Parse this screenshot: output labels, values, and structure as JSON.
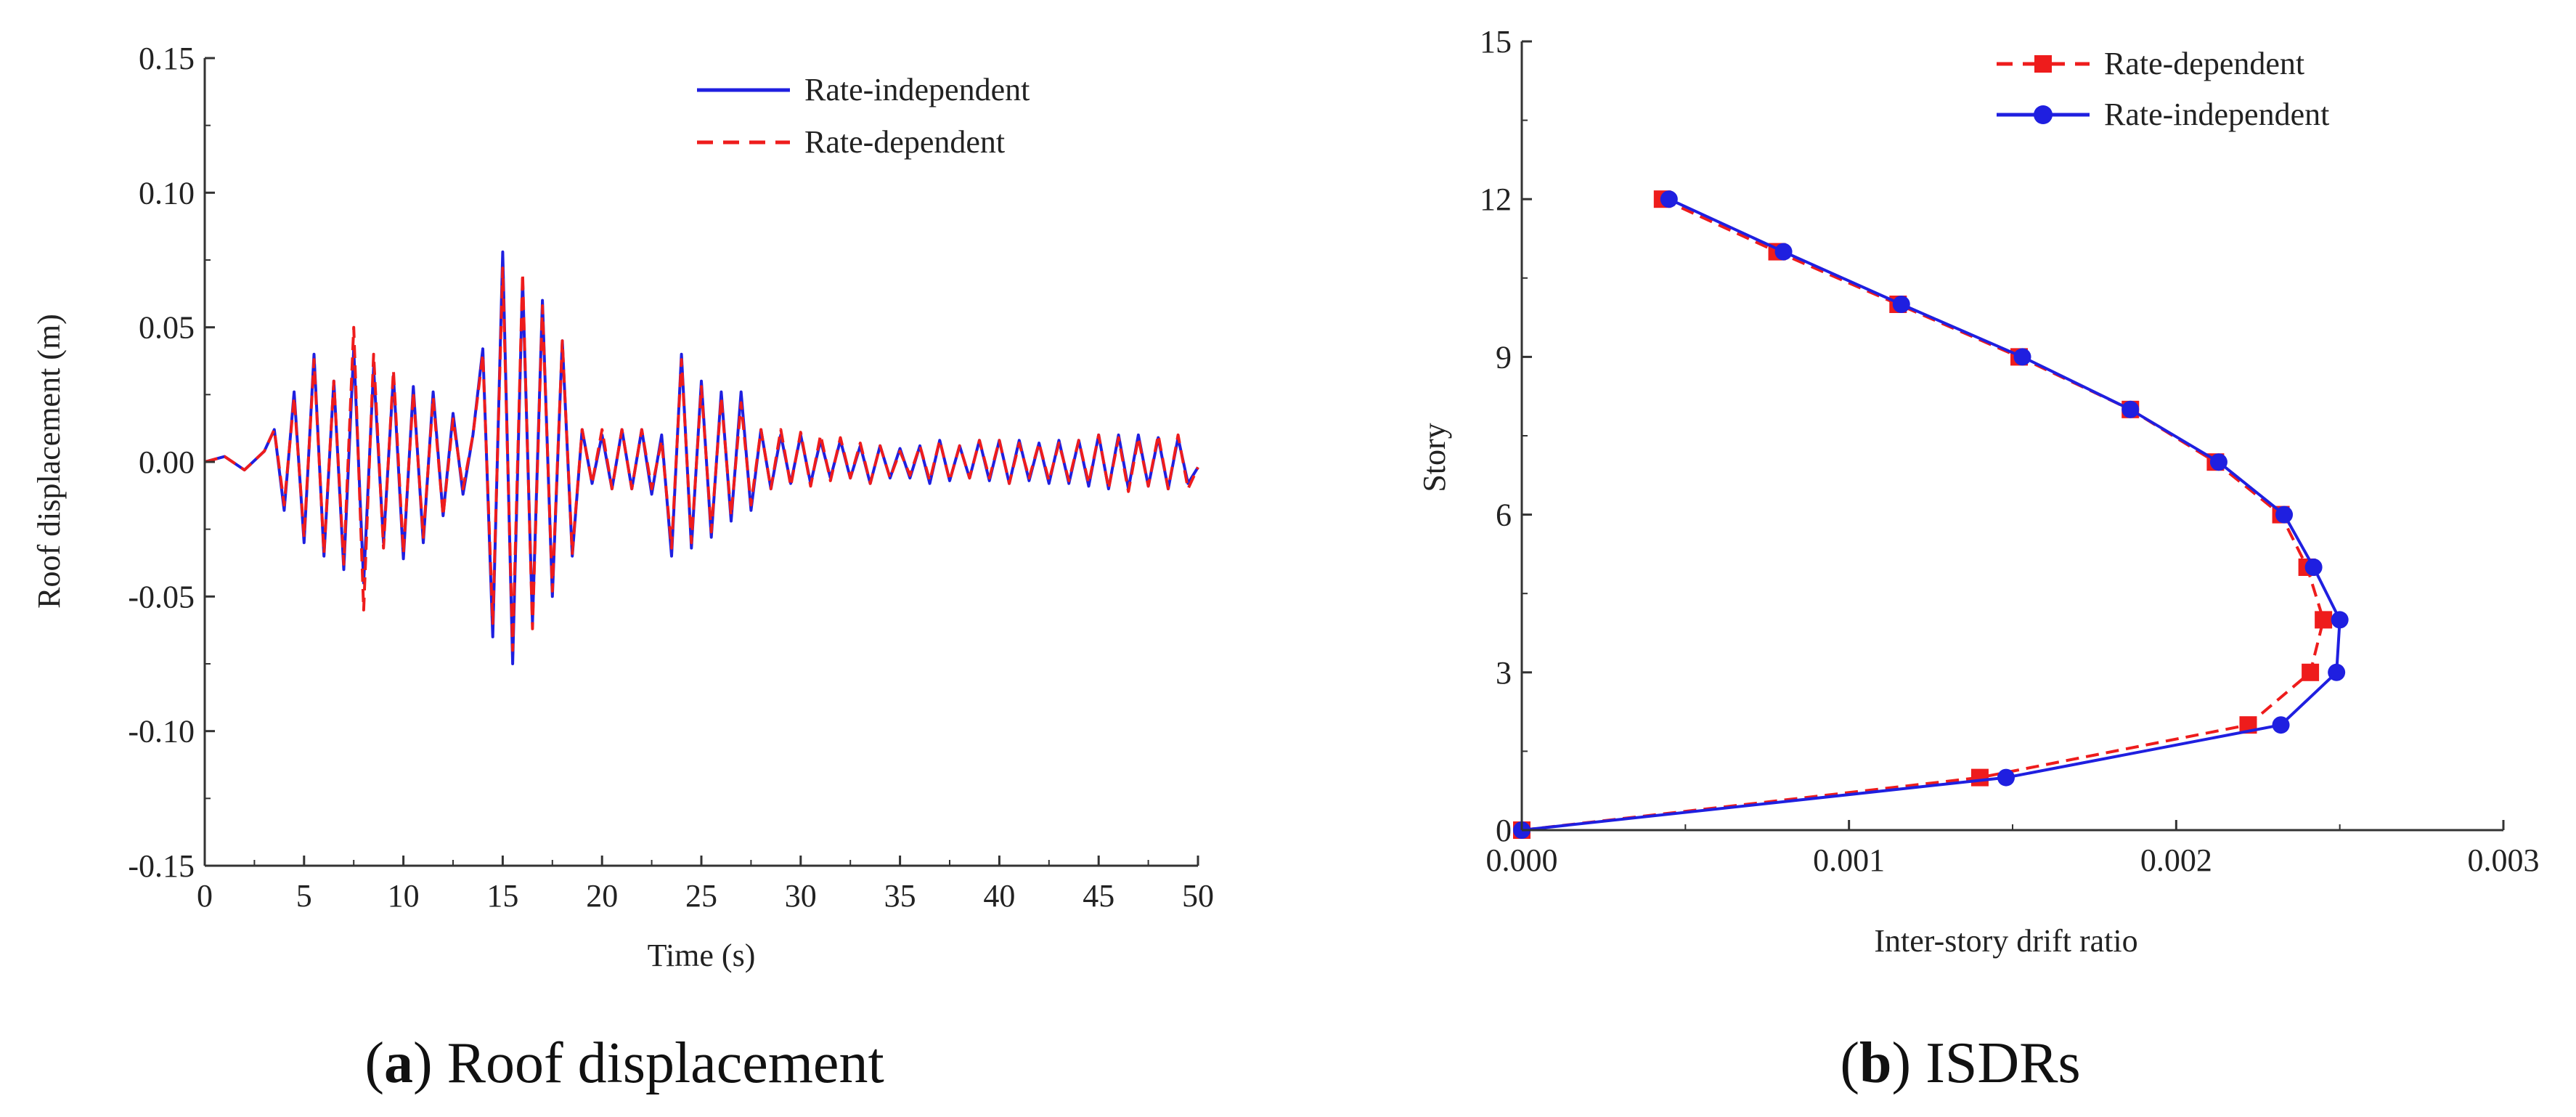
{
  "chart_data": [
    {
      "type": "line",
      "panel_label": "a",
      "caption": "Roof displacement",
      "xlabel": "Time (s)",
      "ylabel": "Roof displacement (m)",
      "xlim": [
        0,
        50
      ],
      "ylim": [
        -0.15,
        0.15
      ],
      "xticks": [
        0,
        5,
        10,
        15,
        20,
        25,
        30,
        35,
        40,
        45,
        50
      ],
      "xtick_labels": [
        "0",
        "5",
        "10",
        "15",
        "20",
        "25",
        "30",
        "35",
        "40",
        "45",
        "50"
      ],
      "yticks": [
        -0.15,
        -0.1,
        -0.05,
        0.0,
        0.05,
        0.1,
        0.15
      ],
      "ytick_labels": [
        "-0.15",
        "-0.10",
        "-0.05",
        "0.00",
        "0.05",
        "0.10",
        "0.15"
      ],
      "legend_position": "top-right",
      "series": [
        {
          "name": "Rate-independent",
          "color": "#1f1fe0",
          "line_style": "solid",
          "x": [
            0,
            1,
            2,
            3,
            3.5,
            4,
            4.5,
            5,
            5.5,
            6,
            6.5,
            7,
            7.5,
            8,
            8.5,
            9,
            9.5,
            10,
            10.5,
            11,
            11.5,
            12,
            12.5,
            13,
            13.5,
            14,
            14.5,
            15,
            15.5,
            16,
            16.5,
            17,
            17.5,
            18,
            18.5,
            19,
            19.5,
            20,
            20.5,
            21,
            21.5,
            22,
            22.5,
            23,
            23.5,
            24,
            24.5,
            25,
            25.5,
            26,
            26.5,
            27,
            27.5,
            28,
            28.5,
            29,
            29.5,
            30,
            30.5,
            31,
            31.5,
            32,
            32.5,
            33,
            33.5,
            34,
            34.5,
            35,
            35.5,
            36,
            36.5,
            37,
            37.5,
            38,
            38.5,
            39,
            39.5,
            40,
            40.5,
            41,
            41.5,
            42,
            42.5,
            43,
            43.5,
            44,
            44.5,
            45,
            45.5,
            46,
            46.5,
            47,
            47.5,
            48,
            48.5,
            49,
            49.5,
            50
          ],
          "y": [
            0,
            0.002,
            -0.003,
            0.004,
            0.012,
            -0.018,
            0.026,
            -0.03,
            0.04,
            -0.035,
            0.03,
            -0.04,
            0.042,
            -0.045,
            0.035,
            -0.03,
            0.032,
            -0.036,
            0.028,
            -0.03,
            0.026,
            -0.02,
            0.018,
            -0.012,
            0.01,
            0.042,
            -0.065,
            0.078,
            -0.075,
            0.068,
            -0.06,
            0.06,
            -0.05,
            0.045,
            -0.035,
            0.012,
            -0.008,
            0.01,
            -0.01,
            0.012,
            -0.01,
            0.012,
            -0.012,
            0.01,
            -0.035,
            0.04,
            -0.032,
            0.03,
            -0.028,
            0.026,
            -0.022,
            0.026,
            -0.018,
            0.012,
            -0.01,
            0.01,
            -0.008,
            0.01,
            -0.008,
            0.008,
            -0.006,
            0.008,
            -0.006,
            0.006,
            -0.008,
            0.006,
            -0.006,
            0.005,
            -0.006,
            0.006,
            -0.008,
            0.008,
            -0.007,
            0.006,
            -0.006,
            0.008,
            -0.007,
            0.008,
            -0.008,
            0.008,
            -0.007,
            0.007,
            -0.008,
            0.008,
            -0.008,
            0.008,
            -0.009,
            0.01,
            -0.01,
            0.01,
            -0.01,
            0.01,
            -0.009,
            0.009,
            -0.01,
            0.009,
            -0.008,
            -0.002
          ]
        },
        {
          "name": "Rate-dependent",
          "color": "#ee1c1c",
          "line_style": "dashed",
          "x": [
            0,
            1,
            2,
            3,
            3.5,
            4,
            4.5,
            5,
            5.5,
            6,
            6.5,
            7,
            7.5,
            8,
            8.5,
            9,
            9.5,
            10,
            10.5,
            11,
            11.5,
            12,
            12.5,
            13,
            13.5,
            14,
            14.5,
            15,
            15.5,
            16,
            16.5,
            17,
            17.5,
            18,
            18.5,
            19,
            19.5,
            20,
            20.5,
            21,
            21.5,
            22,
            22.5,
            23,
            23.5,
            24,
            24.5,
            25,
            25.5,
            26,
            26.5,
            27,
            27.5,
            28,
            28.5,
            29,
            29.5,
            30,
            30.5,
            31,
            31.5,
            32,
            32.5,
            33,
            33.5,
            34,
            34.5,
            35,
            35.5,
            36,
            36.5,
            37,
            37.5,
            38,
            38.5,
            39,
            39.5,
            40,
            40.5,
            41,
            41.5,
            42,
            42.5,
            43,
            43.5,
            44,
            44.5,
            45,
            45.5,
            46,
            46.5,
            47,
            47.5,
            48,
            48.5,
            49,
            49.5,
            50
          ],
          "y": [
            0,
            0.002,
            -0.003,
            0.004,
            0.012,
            -0.016,
            0.024,
            -0.028,
            0.038,
            -0.034,
            0.03,
            -0.038,
            0.05,
            -0.055,
            0.04,
            -0.032,
            0.034,
            -0.034,
            0.026,
            -0.028,
            0.024,
            -0.02,
            0.016,
            -0.01,
            0.01,
            0.04,
            -0.06,
            0.072,
            -0.07,
            0.07,
            -0.062,
            0.058,
            -0.048,
            0.045,
            -0.034,
            0.012,
            -0.008,
            0.012,
            -0.01,
            0.012,
            -0.01,
            0.012,
            -0.01,
            0.008,
            -0.032,
            0.038,
            -0.03,
            0.028,
            -0.026,
            0.024,
            -0.02,
            0.022,
            -0.016,
            0.012,
            -0.01,
            0.012,
            -0.009,
            0.011,
            -0.009,
            0.01,
            -0.007,
            0.009,
            -0.006,
            0.007,
            -0.008,
            0.006,
            -0.006,
            0.004,
            -0.005,
            0.006,
            -0.007,
            0.008,
            -0.007,
            0.006,
            -0.006,
            0.008,
            -0.006,
            0.008,
            -0.008,
            0.007,
            -0.006,
            0.007,
            -0.007,
            0.007,
            -0.007,
            0.008,
            -0.008,
            0.01,
            -0.01,
            0.009,
            -0.011,
            0.009,
            -0.009,
            0.01,
            -0.01,
            0.01,
            -0.01,
            -0.002
          ]
        }
      ]
    },
    {
      "type": "line",
      "panel_label": "b",
      "caption": "ISDRs",
      "xlabel": "Inter-story drift ratio",
      "ylabel": "Story",
      "xlim": [
        0,
        0.003
      ],
      "ylim": [
        0,
        15
      ],
      "xticks": [
        0,
        0.001,
        0.002,
        0.003
      ],
      "xtick_labels": [
        "0.000",
        "0.001",
        "0.002",
        "0.003"
      ],
      "yticks": [
        0,
        3,
        6,
        9,
        12,
        15
      ],
      "ytick_labels": [
        "0",
        "3",
        "6",
        "9",
        "12",
        "15"
      ],
      "legend_position": "top-right",
      "series": [
        {
          "name": "Rate-dependent",
          "color": "#ee1c1c",
          "line_style": "dashed",
          "marker": "square",
          "x": [
            0,
            0.0014,
            0.00222,
            0.00241,
            0.00245,
            0.0024,
            0.00232,
            0.00212,
            0.00186,
            0.00152,
            0.00115,
            0.00078,
            0.00043
          ],
          "y": [
            0,
            1,
            2,
            3,
            4,
            5,
            6,
            7,
            8,
            9,
            10,
            11,
            12
          ]
        },
        {
          "name": "Rate-independent",
          "color": "#1f1fe0",
          "line_style": "solid",
          "marker": "circle",
          "x": [
            0,
            0.00148,
            0.00232,
            0.00249,
            0.0025,
            0.00242,
            0.00233,
            0.00213,
            0.00186,
            0.00153,
            0.00116,
            0.0008,
            0.00045
          ],
          "y": [
            0,
            1,
            2,
            3,
            4,
            5,
            6,
            7,
            8,
            9,
            10,
            11,
            12
          ]
        }
      ]
    }
  ]
}
